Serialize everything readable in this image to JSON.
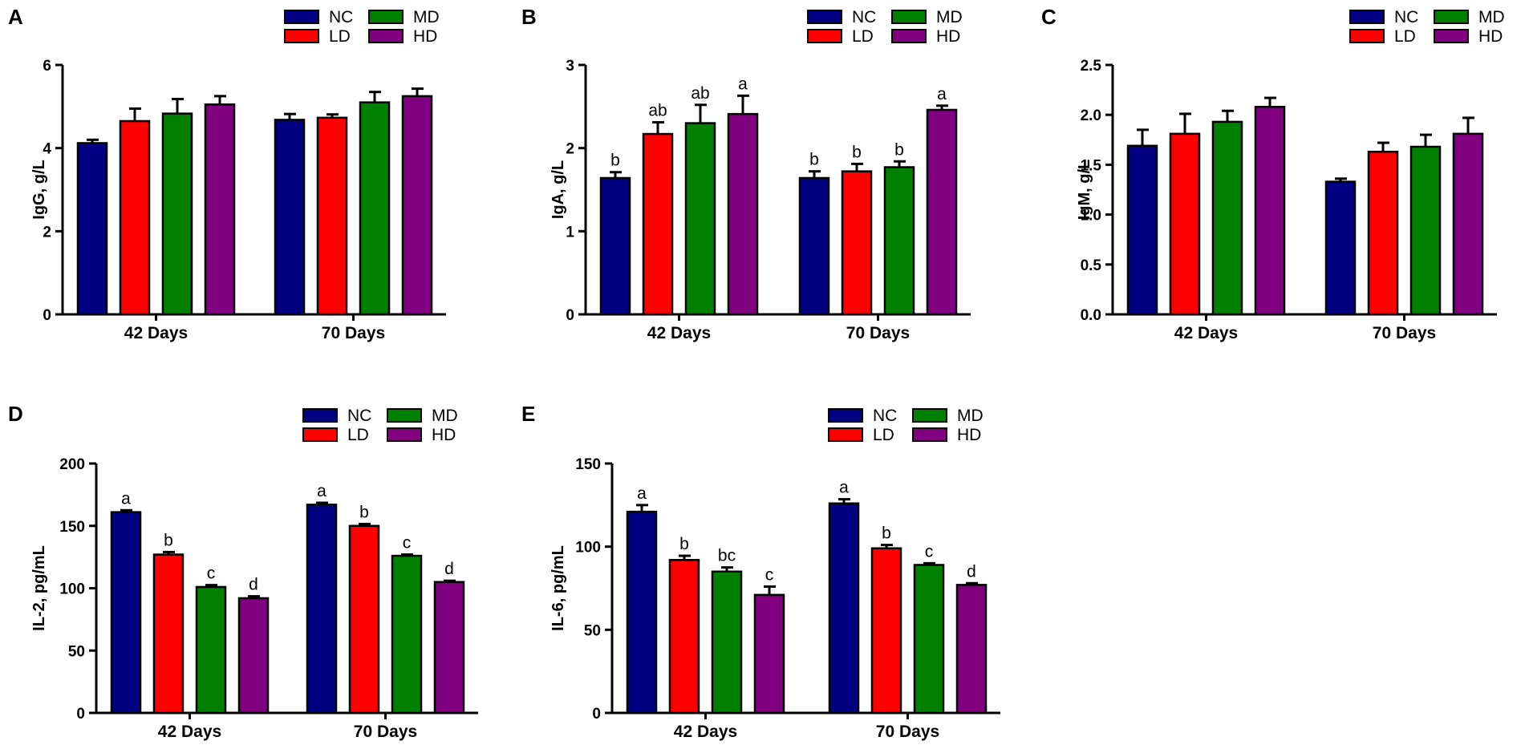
{
  "colors": {
    "NC": "#000080",
    "LD": "#ff0000",
    "MD": "#008000",
    "HD": "#800080"
  },
  "chart_data": [
    {
      "type": "bar",
      "panel": "A",
      "title": "",
      "xlabel": "",
      "ylabel": "IgG, g/L",
      "categories": [
        "42 Days",
        "70 Days"
      ],
      "ylim": [
        0,
        6
      ],
      "yticks": [
        0,
        2,
        4,
        6
      ],
      "ytick_labels": [
        "0",
        "2",
        "4",
        "6"
      ],
      "legend": [
        "NC",
        "LD",
        "MD",
        "HD"
      ],
      "series": [
        {
          "name": "NC",
          "values": [
            4.12,
            4.68
          ],
          "errors": [
            0.08,
            0.14
          ],
          "labels": [
            "",
            ""
          ]
        },
        {
          "name": "LD",
          "values": [
            4.65,
            4.73
          ],
          "errors": [
            0.3,
            0.08
          ],
          "labels": [
            "",
            ""
          ]
        },
        {
          "name": "MD",
          "values": [
            4.83,
            5.1
          ],
          "errors": [
            0.35,
            0.25
          ],
          "labels": [
            "",
            ""
          ]
        },
        {
          "name": "HD",
          "values": [
            5.05,
            5.25
          ],
          "errors": [
            0.2,
            0.18
          ],
          "labels": [
            "",
            ""
          ]
        }
      ]
    },
    {
      "type": "bar",
      "panel": "B",
      "title": "",
      "xlabel": "",
      "ylabel": "IgA, g/L",
      "categories": [
        "42 Days",
        "70 Days"
      ],
      "ylim": [
        0,
        3
      ],
      "yticks": [
        0,
        1,
        2,
        3
      ],
      "ytick_labels": [
        "0",
        "1",
        "2",
        "3"
      ],
      "legend": [
        "NC",
        "LD",
        "MD",
        "HD"
      ],
      "series": [
        {
          "name": "NC",
          "values": [
            1.64,
            1.64
          ],
          "errors": [
            0.07,
            0.08
          ],
          "labels": [
            "b",
            "b"
          ]
        },
        {
          "name": "LD",
          "values": [
            2.17,
            1.72
          ],
          "errors": [
            0.14,
            0.09
          ],
          "labels": [
            "ab",
            "b"
          ]
        },
        {
          "name": "MD",
          "values": [
            2.3,
            1.77
          ],
          "errors": [
            0.22,
            0.07
          ],
          "labels": [
            "ab",
            "b"
          ]
        },
        {
          "name": "HD",
          "values": [
            2.41,
            2.46
          ],
          "errors": [
            0.22,
            0.05
          ],
          "labels": [
            "a",
            "a"
          ]
        }
      ]
    },
    {
      "type": "bar",
      "panel": "C",
      "title": "",
      "xlabel": "",
      "ylabel": "IgM, g/L",
      "categories": [
        "42 Days",
        "70 Days"
      ],
      "ylim": [
        0,
        2.5
      ],
      "yticks": [
        0,
        0.5,
        1,
        1.5,
        2,
        2.5
      ],
      "ytick_labels": [
        "0.0",
        "0.5",
        "1.0",
        "1.5",
        "2.0",
        "2.5"
      ],
      "legend": [
        "NC",
        "LD",
        "MD",
        "HD"
      ],
      "series": [
        {
          "name": "NC",
          "values": [
            1.69,
            1.33
          ],
          "errors": [
            0.16,
            0.03
          ],
          "labels": [
            "",
            ""
          ]
        },
        {
          "name": "LD",
          "values": [
            1.81,
            1.63
          ],
          "errors": [
            0.2,
            0.09
          ],
          "labels": [
            "",
            ""
          ]
        },
        {
          "name": "MD",
          "values": [
            1.93,
            1.68
          ],
          "errors": [
            0.11,
            0.12
          ],
          "labels": [
            "",
            ""
          ]
        },
        {
          "name": "HD",
          "values": [
            2.08,
            1.81
          ],
          "errors": [
            0.09,
            0.16
          ],
          "labels": [
            "",
            ""
          ]
        }
      ]
    },
    {
      "type": "bar",
      "panel": "D",
      "title": "",
      "xlabel": "",
      "ylabel": "IL-2, pg/mL",
      "categories": [
        "42 Days",
        "70 Days"
      ],
      "ylim": [
        0,
        200
      ],
      "yticks": [
        0,
        50,
        100,
        150,
        200
      ],
      "ytick_labels": [
        "0",
        "50",
        "100",
        "150",
        "200"
      ],
      "legend": [
        "NC",
        "LD",
        "MD",
        "HD"
      ],
      "series": [
        {
          "name": "NC",
          "values": [
            161,
            167
          ],
          "errors": [
            1.5,
            1.5
          ],
          "labels": [
            "a",
            "a"
          ]
        },
        {
          "name": "LD",
          "values": [
            127,
            150
          ],
          "errors": [
            2,
            1.5
          ],
          "labels": [
            "b",
            "b"
          ]
        },
        {
          "name": "MD",
          "values": [
            101,
            126
          ],
          "errors": [
            1.5,
            1
          ],
          "labels": [
            "c",
            "c"
          ]
        },
        {
          "name": "HD",
          "values": [
            92,
            105
          ],
          "errors": [
            1.5,
            1
          ],
          "labels": [
            "d",
            "d"
          ]
        }
      ]
    },
    {
      "type": "bar",
      "panel": "E",
      "title": "",
      "xlabel": "",
      "ylabel": "IL-6, pg/mL",
      "categories": [
        "42 Days",
        "70 Days"
      ],
      "ylim": [
        0,
        150
      ],
      "yticks": [
        0,
        50,
        100,
        150
      ],
      "ytick_labels": [
        "0",
        "50",
        "100",
        "150"
      ],
      "legend": [
        "NC",
        "LD",
        "MD",
        "HD"
      ],
      "series": [
        {
          "name": "NC",
          "values": [
            121,
            126
          ],
          "errors": [
            4,
            2.5
          ],
          "labels": [
            "a",
            "a"
          ]
        },
        {
          "name": "LD",
          "values": [
            92,
            99
          ],
          "errors": [
            2.5,
            2
          ],
          "labels": [
            "b",
            "b"
          ]
        },
        {
          "name": "MD",
          "values": [
            85,
            89
          ],
          "errors": [
            2.5,
            1
          ],
          "labels": [
            "bc",
            "c"
          ]
        },
        {
          "name": "HD",
          "values": [
            71,
            77
          ],
          "errors": [
            5,
            1
          ],
          "labels": [
            "c",
            "d"
          ]
        }
      ]
    }
  ]
}
